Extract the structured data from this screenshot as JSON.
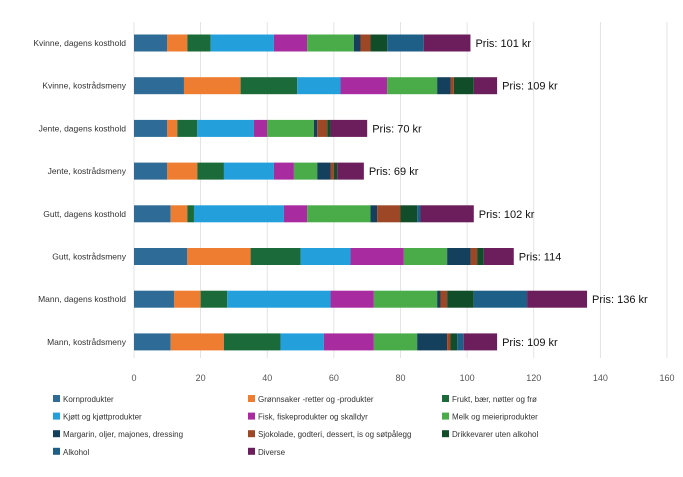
{
  "chart_data": {
    "type": "bar",
    "orientation": "horizontal",
    "stacked": true,
    "xlim": [
      0,
      160
    ],
    "x_ticks": [
      0,
      20,
      40,
      60,
      80,
      100,
      120,
      140,
      160
    ],
    "grid": "vertical",
    "legend_position": "bottom",
    "categories": [
      "Kvinne, dagens kosthold",
      "Kvinne, kostrådsmeny",
      "Jente, dagens kosthold",
      "Jente, kostrådsmeny",
      "Gutt, dagens kosthold",
      "Gutt, kostrådsmeny",
      "Mann, dagens kosthold",
      "Mann, kostrådsmeny"
    ],
    "price_labels": [
      "Pris: 101 kr",
      "Pris: 109 kr",
      "Pris: 70 kr",
      "Pris: 69 kr",
      "Pris: 102 kr",
      "Pris: 114",
      "Pris: 136 kr",
      "Pris: 109 kr"
    ],
    "series": [
      {
        "name": "Kornprodukter",
        "color": "#2e6b96",
        "values": [
          10,
          15,
          10,
          10,
          11,
          16,
          12,
          11
        ]
      },
      {
        "name": "Grønnsaker -retter og -produkter",
        "color": "#ee7d31",
        "values": [
          6,
          17,
          3,
          9,
          5,
          19,
          8,
          16
        ]
      },
      {
        "name": "Frukt, bær, nøtter og frø",
        "color": "#1b6b3a",
        "values": [
          7,
          17,
          6,
          8,
          2,
          15,
          8,
          17
        ]
      },
      {
        "name": "Kjøtt og kjøttprodukter",
        "color": "#23a0dc",
        "values": [
          19,
          13,
          17,
          15,
          27,
          15,
          31,
          13
        ]
      },
      {
        "name": "Fisk, fiskeprodukter og skalldyr",
        "color": "#a82ba0",
        "values": [
          10,
          14,
          4,
          6,
          7,
          16,
          13,
          15
        ]
      },
      {
        "name": "Melk og meieriprodukter",
        "color": "#4aac48",
        "values": [
          14,
          15,
          14,
          7,
          19,
          13,
          19,
          13
        ]
      },
      {
        "name": "Margarin, oljer, majones, dressing",
        "color": "#14405e",
        "values": [
          2,
          4,
          1,
          4,
          2,
          7,
          1,
          9
        ]
      },
      {
        "name": "Sjokolade, godteri, dessert, is og søtpålegg",
        "color": "#9e4726",
        "values": [
          3,
          1,
          3,
          1,
          7,
          2,
          2,
          1
        ]
      },
      {
        "name": "Drikkevarer uten alkohol",
        "color": "#124d2a",
        "values": [
          5,
          6,
          1,
          1,
          5,
          2,
          8,
          2
        ]
      },
      {
        "name": "Alkohol",
        "color": "#1e5f87",
        "values": [
          11,
          0,
          0,
          0,
          1,
          0,
          16,
          2
        ]
      },
      {
        "name": "Diverse",
        "color": "#6b1d5c",
        "values": [
          14,
          7,
          11,
          8,
          16,
          9,
          18,
          10
        ]
      }
    ]
  }
}
